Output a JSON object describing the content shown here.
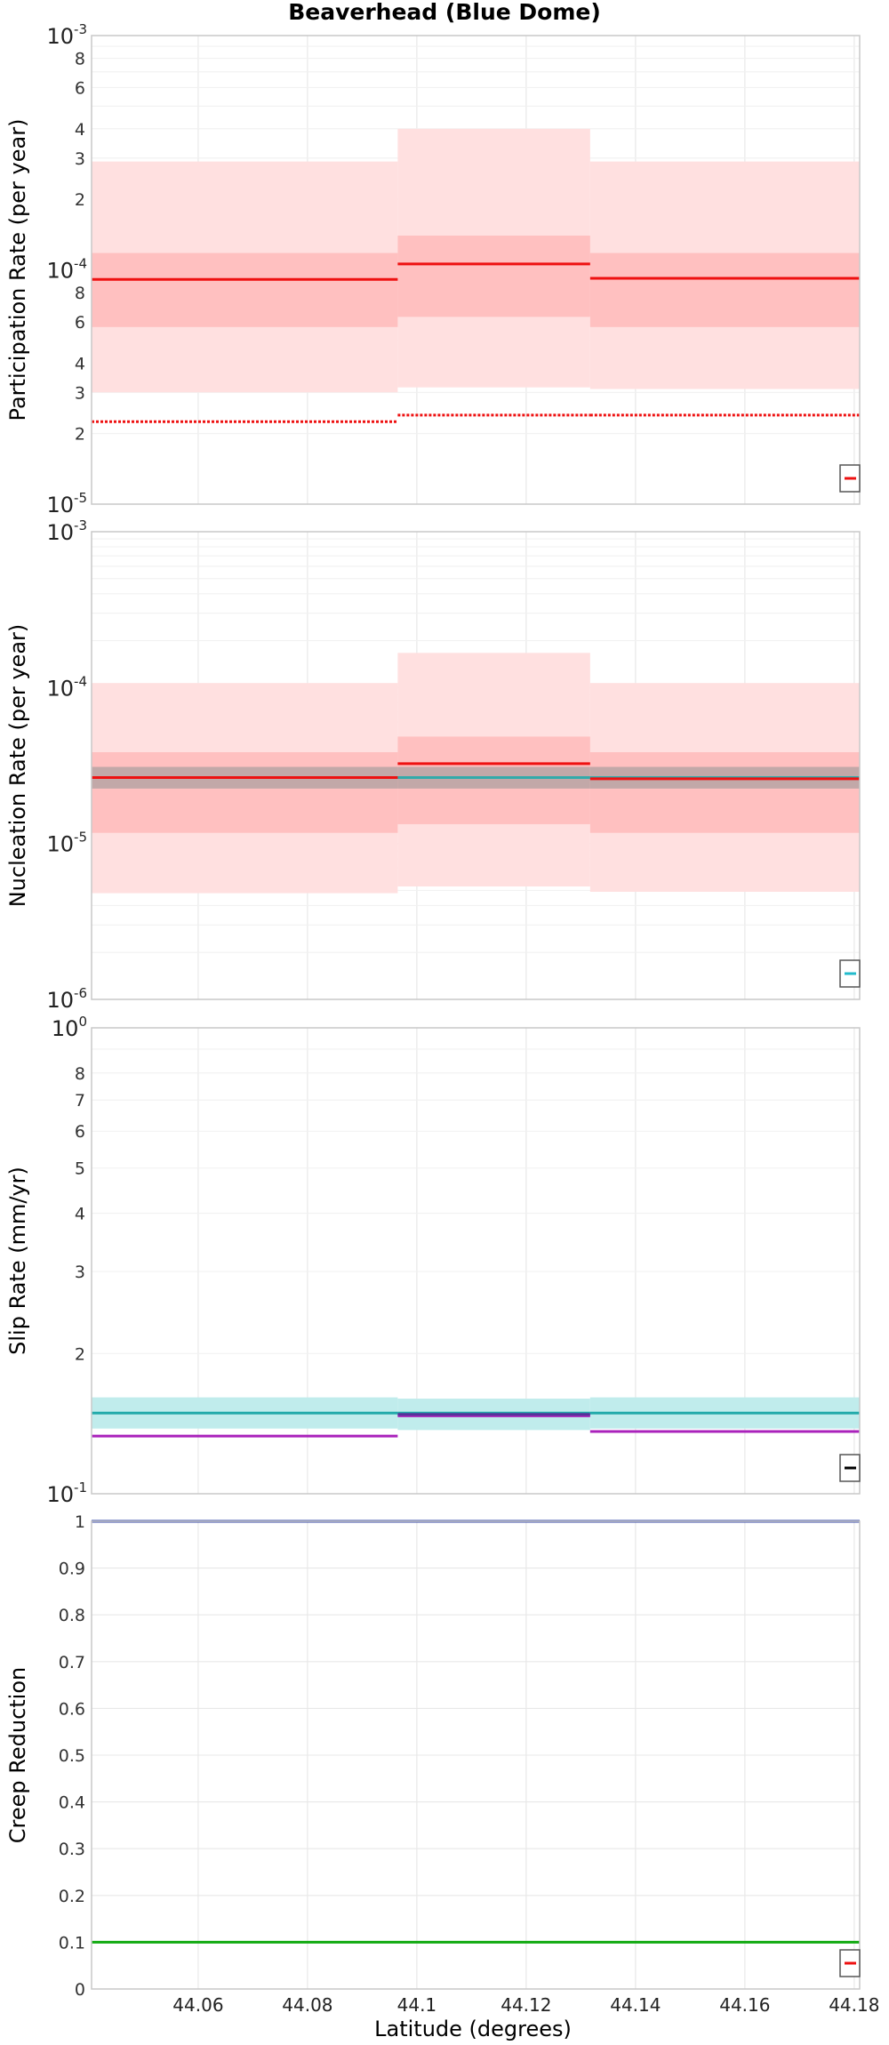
{
  "title": "Beaverhead (Blue Dome)",
  "xlabel": "Latitude (degrees)",
  "x_ticks": [
    "44.06",
    "44.08",
    "44.1",
    "44.12",
    "44.14",
    "44.16",
    "44.18"
  ],
  "chart_data": [
    {
      "type": "line",
      "ylabel": "Participation Rate (per year)",
      "yscale": "log",
      "xlim": [
        44.0405,
        44.181
      ],
      "ylim": [
        1e-05,
        0.001
      ],
      "major_ticks": [
        {
          "base": "10",
          "exp": "-5"
        },
        {
          "base": "10",
          "exp": "-4"
        },
        {
          "base": "10",
          "exp": "-3"
        }
      ],
      "minor_tick_labels": [
        "2",
        "3",
        "4",
        "6",
        "8",
        "2",
        "3",
        "4",
        "6",
        "8"
      ],
      "x_segments": [
        [
          44.0405,
          44.0965
        ],
        [
          44.0965,
          44.1317
        ],
        [
          44.1317,
          44.181
        ]
      ],
      "bands": [
        {
          "name": "outer band",
          "color": "#ffe0e0",
          "low": [
            3e-05,
            3.15e-05,
            3.1e-05
          ],
          "high": [
            0.00029,
            0.0004,
            0.00029
          ]
        },
        {
          "name": "inner band",
          "color": "#ffc0c0",
          "low": [
            5.7e-05,
            6.3e-05,
            5.7e-05
          ],
          "high": [
            0.000118,
            0.00014,
            0.000118
          ]
        }
      ],
      "series": [
        {
          "name": "mean",
          "style": "solid",
          "color": "#ee1111",
          "values": [
            9.1e-05,
            0.000106,
            9.2e-05
          ]
        },
        {
          "name": "other",
          "style": "dotted",
          "color": "#ee1111",
          "values": [
            2.25e-05,
            2.4e-05,
            2.4e-05
          ]
        }
      ],
      "legend_color": "#ee1111"
    },
    {
      "type": "line",
      "ylabel": "Nucleation Rate (per year)",
      "yscale": "log",
      "xlim": [
        44.0405,
        44.181
      ],
      "ylim": [
        1e-06,
        0.001
      ],
      "major_ticks": [
        {
          "base": "10",
          "exp": "-6"
        },
        {
          "base": "10",
          "exp": "-5"
        },
        {
          "base": "10",
          "exp": "-4"
        },
        {
          "base": "10",
          "exp": "-3"
        }
      ],
      "minor_tick_labels": [],
      "x_segments": [
        [
          44.0405,
          44.0965
        ],
        [
          44.0965,
          44.1317
        ],
        [
          44.1317,
          44.181
        ]
      ],
      "bands": [
        {
          "name": "outer band",
          "color": "#ffe0e0",
          "low": [
            4.8e-06,
            5.3e-06,
            4.9e-06
          ],
          "high": [
            0.000107,
            0.000167,
            0.000107
          ]
        },
        {
          "name": "inner band",
          "color": "#ffc0c0",
          "low": [
            1.17e-05,
            1.33e-05,
            1.17e-05
          ],
          "high": [
            3.85e-05,
            4.85e-05,
            3.85e-05
          ]
        },
        {
          "name": "gray band",
          "color": "#c2a8a8",
          "low": [
            2.25e-05,
            2.25e-05,
            2.25e-05
          ],
          "high": [
            3.1e-05,
            3.1e-05,
            3.1e-05
          ]
        }
      ],
      "series": [
        {
          "name": "target",
          "style": "solid",
          "color": "#33aaaa",
          "values": [
            2.65e-05,
            2.65e-05,
            2.65e-05
          ]
        },
        {
          "name": "mean",
          "style": "solid",
          "color": "#ee1111",
          "values": [
            2.65e-05,
            3.25e-05,
            2.6e-05
          ]
        }
      ],
      "legend_color": "#22bbcc"
    },
    {
      "type": "line",
      "ylabel": "Slip Rate (mm/yr)",
      "yscale": "log",
      "xlim": [
        44.0405,
        44.181
      ],
      "ylim": [
        0.1,
        1.0
      ],
      "major_ticks": [
        {
          "base": "10",
          "exp": "-1"
        },
        {
          "base": "10",
          "exp": "0"
        }
      ],
      "minor_tick_labels": [
        "2",
        "3",
        "4",
        "5",
        "6",
        "7",
        "8"
      ],
      "x_segments": [
        [
          44.0405,
          44.0965
        ],
        [
          44.0965,
          44.1317
        ],
        [
          44.1317,
          44.181
        ]
      ],
      "bands": [
        {
          "name": "target band",
          "color": "#c0ecec",
          "low": [
            0.138,
            0.137,
            0.138
          ],
          "high": [
            0.161,
            0.16,
            0.161
          ]
        }
      ],
      "series": [
        {
          "name": "target",
          "style": "solid",
          "color": "#22aaaa",
          "values": [
            0.149,
            0.149,
            0.149
          ]
        },
        {
          "name": "solution",
          "style": "solid",
          "color": "#aa22bb",
          "values": [
            0.133,
            0.147,
            0.136
          ]
        },
        {
          "name": "solution center",
          "style": "solid",
          "color": "#553399",
          "values": [
            null,
            0.148,
            null
          ]
        }
      ],
      "legend_color": "#000000"
    },
    {
      "type": "line",
      "ylabel": "Creep Reduction",
      "yscale": "linear",
      "xlim": [
        44.0405,
        44.181
      ],
      "ylim": [
        0,
        1
      ],
      "y_ticks": [
        "0",
        "0.1",
        "0.2",
        "0.3",
        "0.4",
        "0.5",
        "0.6",
        "0.7",
        "0.8",
        "0.9",
        "1"
      ],
      "bands": [],
      "series": [
        {
          "name": "upper",
          "style": "solid",
          "color": "#3344aa",
          "values": [
            1.0
          ]
        },
        {
          "name": "lower",
          "style": "solid",
          "color": "#11aa11",
          "values": [
            0.1
          ]
        }
      ],
      "legend_color": "#ee1111"
    }
  ]
}
